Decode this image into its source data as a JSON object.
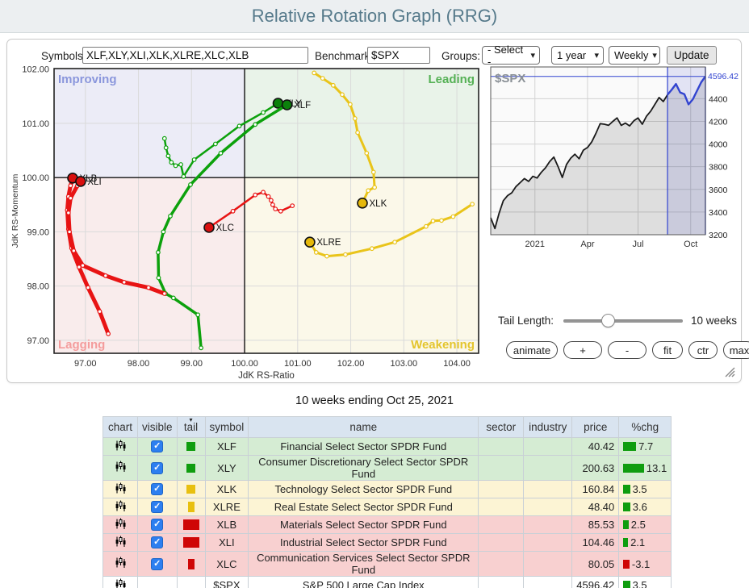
{
  "header": {
    "title": "Relative Rotation Graph (RRG)"
  },
  "toolbar": {
    "symbols_label": "Symbols:",
    "symbols_value": "XLF,XLY,XLI,XLK,XLRE,XLC,XLB",
    "benchmark_label": "Benchmark:",
    "benchmark_value": "$SPX",
    "groups_label": "Groups:",
    "groups_value": "- Select -",
    "range_value": "1 year",
    "frequency_value": "Weekly",
    "update_label": "Update"
  },
  "controls": {
    "tail_label": "Tail Length:",
    "tail_value": "10 weeks",
    "buttons": [
      "animate",
      "+",
      "-",
      "fit",
      "ctr",
      "max"
    ]
  },
  "caption": "10 weeks ending Oct 25, 2021",
  "chart_data": [
    {
      "id": "rrg",
      "type": "scatter",
      "xlabel": "JdK RS-Ratio",
      "ylabel": "JdK RS-Momentum",
      "xlim": [
        96.41,
        104.41
      ],
      "ylim": [
        96.76,
        102.01
      ],
      "xticks": [
        97,
        98,
        99,
        100,
        101,
        102,
        103,
        104
      ],
      "yticks": [
        97,
        98,
        99,
        100,
        101,
        102
      ],
      "center": [
        100,
        100
      ],
      "quadrants": [
        {
          "name": "Improving",
          "color": "#8a96dc",
          "bg": "#ececf7"
        },
        {
          "name": "Leading",
          "color": "#55b155",
          "bg": "#e9f3e9"
        },
        {
          "name": "Lagging",
          "color": "#f49c9c",
          "bg": "#f9ecec"
        },
        {
          "name": "Weakening",
          "color": "#e4c52e",
          "bg": "#fbf8e9"
        }
      ],
      "series": [
        {
          "name": "XLY",
          "color": "#0ca10c",
          "head": "#0b810b",
          "width": 2.5,
          "label": false,
          "points": [
            [
              98.49,
              100.72
            ],
            [
              98.52,
              100.55
            ],
            [
              98.56,
              100.4
            ],
            [
              98.62,
              100.28
            ],
            [
              98.7,
              100.22
            ],
            [
              98.8,
              100.24
            ],
            [
              98.85,
              100.02
            ],
            [
              99.05,
              100.33
            ],
            [
              99.45,
              100.62
            ],
            [
              99.9,
              100.95
            ],
            [
              100.35,
              101.2
            ],
            [
              100.63,
              101.37
            ]
          ]
        },
        {
          "name": "XLF",
          "color": "#0ca10c",
          "head": "#0b810b",
          "width": 3.5,
          "label": true,
          "points": [
            [
              99.18,
              96.86
            ],
            [
              99.12,
              97.47
            ],
            [
              98.66,
              97.78
            ],
            [
              98.51,
              97.86
            ],
            [
              98.38,
              98.15
            ],
            [
              98.37,
              98.62
            ],
            [
              98.47,
              99.0
            ],
            [
              98.6,
              99.29
            ],
            [
              98.98,
              99.87
            ],
            [
              99.55,
              100.45
            ],
            [
              100.2,
              100.98
            ],
            [
              100.8,
              101.34
            ]
          ]
        },
        {
          "name": "XLK",
          "color": "#e9c41a",
          "head": "#e5b80b",
          "width": 3,
          "label": true,
          "points": [
            [
              101.31,
              101.93
            ],
            [
              101.47,
              101.83
            ],
            [
              101.67,
              101.7
            ],
            [
              101.84,
              101.53
            ],
            [
              101.99,
              101.35
            ],
            [
              102.08,
              101.09
            ],
            [
              102.13,
              100.83
            ],
            [
              102.3,
              100.45
            ],
            [
              102.43,
              100.1
            ],
            [
              102.45,
              99.82
            ],
            [
              102.33,
              99.76
            ],
            [
              102.22,
              99.53
            ]
          ]
        },
        {
          "name": "XLRE",
          "color": "#e9c41a",
          "head": "#e5b80b",
          "width": 3,
          "label": true,
          "points": [
            [
              104.29,
              99.51
            ],
            [
              103.93,
              99.28
            ],
            [
              103.71,
              99.21
            ],
            [
              103.55,
              99.2
            ],
            [
              103.42,
              99.1
            ],
            [
              102.83,
              98.81
            ],
            [
              102.4,
              98.69
            ],
            [
              101.9,
              98.58
            ],
            [
              101.55,
              98.55
            ],
            [
              101.35,
              98.62
            ],
            [
              101.23,
              98.81
            ]
          ]
        },
        {
          "name": "XLB",
          "color": "#e81414",
          "head": "#d90f0f",
          "width": 5,
          "label": true,
          "points": [
            [
              97.43,
              97.12
            ],
            [
              97.27,
              97.53
            ],
            [
              97.05,
              97.97
            ],
            [
              96.88,
              98.35
            ],
            [
              96.74,
              98.7
            ],
            [
              96.68,
              99.05
            ],
            [
              96.66,
              99.4
            ],
            [
              96.68,
              99.65
            ],
            [
              96.72,
              99.85
            ],
            [
              96.76,
              99.99
            ]
          ]
        },
        {
          "name": "XLI",
          "color": "#e81414",
          "head": "#d90f0f",
          "width": 5,
          "label": true,
          "points": [
            [
              98.49,
              97.86
            ],
            [
              98.19,
              97.97
            ],
            [
              97.73,
              98.07
            ],
            [
              97.38,
              98.19
            ],
            [
              96.95,
              98.38
            ],
            [
              96.78,
              98.65
            ],
            [
              96.7,
              99.0
            ],
            [
              96.68,
              99.35
            ],
            [
              96.72,
              99.62
            ],
            [
              96.85,
              99.85
            ],
            [
              96.91,
              99.93
            ]
          ]
        },
        {
          "name": "XLC",
          "color": "#e81414",
          "head": "#d90f0f",
          "width": 2.5,
          "label": true,
          "points": [
            [
              100.9,
              99.48
            ],
            [
              100.68,
              99.38
            ],
            [
              100.58,
              99.42
            ],
            [
              100.53,
              99.5
            ],
            [
              100.5,
              99.58
            ],
            [
              100.45,
              99.65
            ],
            [
              100.35,
              99.73
            ],
            [
              100.2,
              99.68
            ],
            [
              99.78,
              99.38
            ],
            [
              99.33,
              99.08
            ]
          ]
        }
      ]
    },
    {
      "id": "spx",
      "type": "area",
      "symbol": "$SPX",
      "last_value": 4596.42,
      "last_label": "4596.42",
      "ylim": [
        3200,
        4680
      ],
      "yticks": [
        3200,
        3400,
        3600,
        3800,
        4000,
        4200,
        4400
      ],
      "xtick_labels": [
        "2021",
        "Apr",
        "Jul",
        "Oct"
      ],
      "xtick_pos": [
        10.5,
        23,
        35,
        47.5
      ],
      "highlight_last": 10,
      "line_color": "#1a1a1a",
      "highlight_color": "#3244d0",
      "values": [
        3350,
        3255,
        3390,
        3500,
        3545,
        3570,
        3625,
        3660,
        3695,
        3670,
        3715,
        3700,
        3750,
        3790,
        3845,
        3885,
        3800,
        3705,
        3820,
        3875,
        3910,
        3870,
        3945,
        3970,
        4020,
        4095,
        4180,
        4175,
        4165,
        4200,
        4230,
        4165,
        4185,
        4160,
        4205,
        4230,
        4175,
        4245,
        4290,
        4350,
        4410,
        4375,
        4435,
        4480,
        4530,
        4455,
        4440,
        4350,
        4395,
        4470,
        4545,
        4596.42
      ]
    }
  ],
  "table": {
    "columns": [
      "chart",
      "visible",
      "tail",
      "symbol",
      "name",
      "sector",
      "industry",
      "price",
      "%chg"
    ],
    "sorted_column": "tail",
    "rows": [
      {
        "symbol": "XLF",
        "name": "Financial Select Sector SPDR Fund",
        "sector": "",
        "industry": "",
        "price": "40.42",
        "chg": "7.7",
        "chg_value": 7.7,
        "row_color": "green",
        "visible": true,
        "tail": {
          "color": "#0f9d0f",
          "w": 11,
          "h": 11
        }
      },
      {
        "symbol": "XLY",
        "name": "Consumer Discretionary Select Sector SPDR Fund",
        "sector": "",
        "industry": "",
        "price": "200.63",
        "chg": "13.1",
        "chg_value": 13.1,
        "row_color": "green",
        "visible": true,
        "tail": {
          "color": "#0f9d0f",
          "w": 11,
          "h": 11
        }
      },
      {
        "symbol": "XLK",
        "name": "Technology Select Sector SPDR Fund",
        "sector": "",
        "industry": "",
        "price": "160.84",
        "chg": "3.5",
        "chg_value": 3.5,
        "row_color": "yellow",
        "visible": true,
        "tail": {
          "color": "#e8c010",
          "w": 11,
          "h": 11
        }
      },
      {
        "symbol": "XLRE",
        "name": "Real Estate Select Sector SPDR Fund",
        "sector": "",
        "industry": "",
        "price": "48.40",
        "chg": "3.6",
        "chg_value": 3.6,
        "row_color": "yellow",
        "visible": true,
        "tail": {
          "color": "#e8c010",
          "w": 8,
          "h": 13
        }
      },
      {
        "symbol": "XLB",
        "name": "Materials Select Sector SPDR Fund",
        "sector": "",
        "industry": "",
        "price": "85.53",
        "chg": "2.5",
        "chg_value": 2.5,
        "row_color": "red",
        "visible": true,
        "tail": {
          "color": "#cf0606",
          "w": 20,
          "h": 13
        }
      },
      {
        "symbol": "XLI",
        "name": "Industrial Select Sector SPDR Fund",
        "sector": "",
        "industry": "",
        "price": "104.46",
        "chg": "2.1",
        "chg_value": 2.1,
        "row_color": "red",
        "visible": true,
        "tail": {
          "color": "#cf0606",
          "w": 20,
          "h": 13
        }
      },
      {
        "symbol": "XLC",
        "name": "Communication Services Select Sector SPDR Fund",
        "sector": "",
        "industry": "",
        "price": "80.05",
        "chg": "-3.1",
        "chg_value": -3.1,
        "row_color": "red",
        "visible": true,
        "tail": {
          "color": "#cf0606",
          "w": 8,
          "h": 13
        }
      },
      {
        "symbol": "$SPX",
        "name": "S&P 500 Large Cap Index",
        "sector": "",
        "industry": "",
        "price": "4596.42",
        "chg": "3.5",
        "chg_value": 3.5,
        "row_color": "none",
        "visible": null,
        "tail": null
      }
    ]
  }
}
